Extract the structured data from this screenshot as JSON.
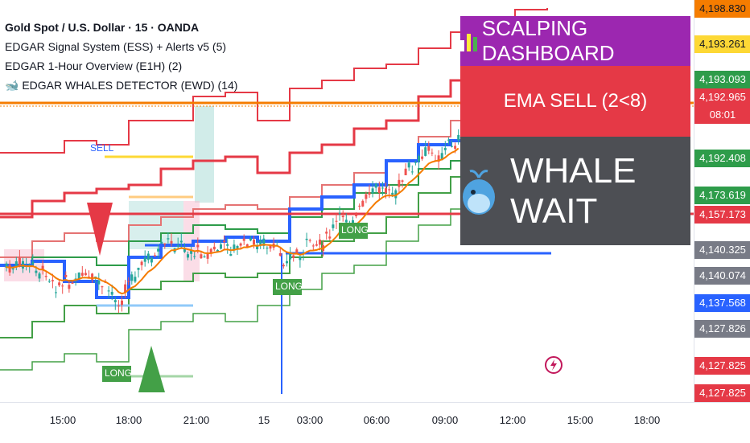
{
  "legend": {
    "symbol": "Gold Spot / U.S. Dollar · 15 · OANDA",
    "indicators": [
      "EDGAR Signal System (ESS) + Alerts v5 (5)",
      "EDGAR 1-Hour Overview (E1H) (2)",
      "🐋 EDGAR WHALES DETECTOR (EWD) (14)"
    ]
  },
  "dashboard": {
    "row1": "SCALPING DASHBOARD",
    "row2": "EMA SELL (2<8)",
    "row3": "WHALE WAIT",
    "colors": {
      "row1": "#9c27b0",
      "row2": "#e53946",
      "row3": "#4d4f54"
    }
  },
  "chart_labels": {
    "sell": "SELL",
    "long1": "LONG",
    "long2": "LONG",
    "long3": "LONG"
  },
  "price_tags": [
    {
      "text": "4,198.830",
      "color": "#f57c00",
      "dark": true
    },
    {
      "text": "4,193.261",
      "color": "#fdd835",
      "dark": true
    },
    {
      "text": "4,193.093",
      "color": "#2e9c4a",
      "dark": false
    },
    {
      "text": "4,192.965",
      "color": "#e53946",
      "dark": false
    },
    {
      "text": "08:01",
      "color": "#e53946",
      "dark": false
    },
    {
      "text": "4,192.408",
      "color": "#2e9c4a",
      "dark": false
    },
    {
      "text": "4,173.619",
      "color": "#2e9c4a",
      "dark": false
    },
    {
      "text": "4,157.173",
      "color": "#e53946",
      "dark": false
    },
    {
      "text": "4,140.325",
      "color": "#787b86",
      "dark": false
    },
    {
      "text": "4,140.074",
      "color": "#787b86",
      "dark": false
    },
    {
      "text": "4,137.568",
      "color": "#2962ff",
      "dark": false
    },
    {
      "text": "4,127.826",
      "color": "#787b86",
      "dark": false
    },
    {
      "text": "4,127.825",
      "color": "#e53946",
      "dark": false
    },
    {
      "text": "4,127.825",
      "color": "#e53946",
      "dark": false
    }
  ],
  "time_axis": [
    "15:00",
    "18:00",
    "21:00",
    "15",
    "03:00",
    "06:00",
    "09:00",
    "12:00",
    "15:00",
    "18:00"
  ],
  "icons": {
    "dashboard": "bar-chart-icon",
    "whale": "whale-icon",
    "flash": "flash-icon"
  }
}
